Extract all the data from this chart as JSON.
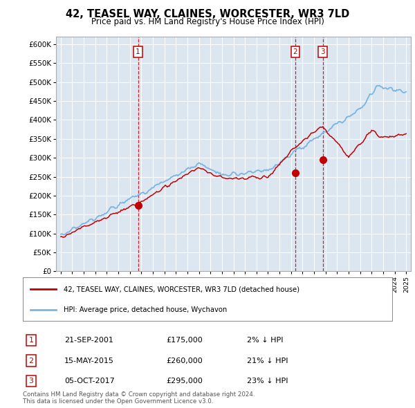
{
  "title": "42, TEASEL WAY, CLAINES, WORCESTER, WR3 7LD",
  "subtitle": "Price paid vs. HM Land Registry's House Price Index (HPI)",
  "ylim": [
    0,
    620000
  ],
  "yticks": [
    0,
    50000,
    100000,
    150000,
    200000,
    250000,
    300000,
    350000,
    400000,
    450000,
    500000,
    550000,
    600000
  ],
  "ytick_labels": [
    "£0",
    "£50K",
    "£100K",
    "£150K",
    "£200K",
    "£250K",
    "£300K",
    "£350K",
    "£400K",
    "£450K",
    "£500K",
    "£550K",
    "£600K"
  ],
  "hpi_color": "#7ab4e0",
  "price_color": "#c00000",
  "background_color": "#dce6f1",
  "grid_color": "#ffffff",
  "sale1_x": 2001.72,
  "sale1_price": 175000,
  "sale1_date": "21-SEP-2001",
  "sale1_hpi_pct": "2% ↓ HPI",
  "sale2_x": 2015.37,
  "sale2_price": 260000,
  "sale2_date": "15-MAY-2015",
  "sale2_hpi_pct": "21% ↓ HPI",
  "sale3_x": 2017.75,
  "sale3_price": 295000,
  "sale3_date": "05-OCT-2017",
  "sale3_hpi_pct": "23% ↓ HPI",
  "legend_label1": "42, TEASEL WAY, CLAINES, WORCESTER, WR3 7LD (detached house)",
  "legend_label2": "HPI: Average price, detached house, Wychavon",
  "footnote": "Contains HM Land Registry data © Crown copyright and database right 2024.\nThis data is licensed under the Open Government Licence v3.0."
}
